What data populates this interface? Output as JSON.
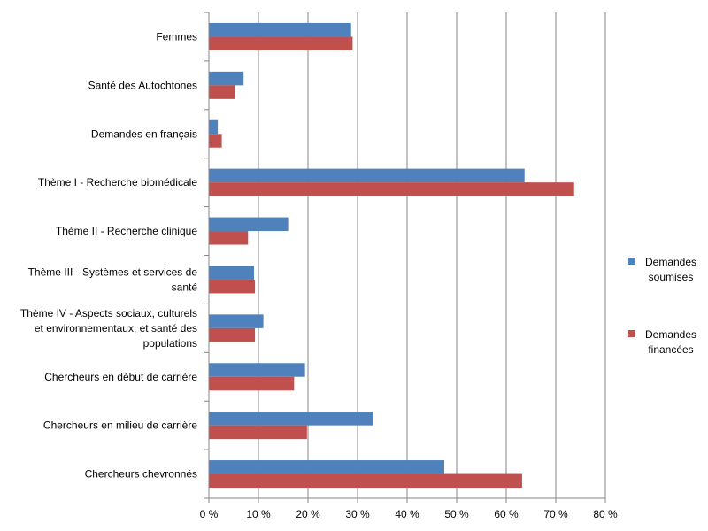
{
  "chart_data": {
    "type": "bar",
    "orientation": "horizontal",
    "title": "",
    "xlabel": "",
    "ylabel": "",
    "categories": [
      [
        "Femmes"
      ],
      [
        "Santé des Autochtones"
      ],
      [
        "Demandes en français"
      ],
      [
        "Thème I - Recherche biomédicale"
      ],
      [
        "Thème II - Recherche clinique"
      ],
      [
        "Thème III - Systèmes et services de",
        "santé"
      ],
      [
        "Thème IV - Aspects sociaux, culturels",
        "et environnementaux, et santé des",
        "populations"
      ],
      [
        "Chercheurs en début de carrière"
      ],
      [
        "Chercheurs en milieu de carrière"
      ],
      [
        "Chercheurs chevronnés"
      ]
    ],
    "series": [
      {
        "name": [
          "Demandes",
          "soumises"
        ],
        "color": "#4F81BD",
        "values": [
          28.7,
          7.0,
          1.8,
          63.7,
          16.0,
          9.1,
          11.0,
          19.4,
          33.1,
          47.5
        ]
      },
      {
        "name": [
          "Demandes",
          "financées"
        ],
        "color": "#C0504D",
        "values": [
          29.0,
          5.2,
          2.6,
          73.7,
          7.9,
          9.3,
          9.3,
          17.2,
          19.8,
          63.2
        ]
      }
    ],
    "xlim": [
      0,
      80
    ],
    "ticks": [
      0,
      10,
      20,
      30,
      40,
      50,
      60,
      70,
      80
    ],
    "tick_labels": [
      "0 %",
      "10 %",
      "20 %",
      "30 %",
      "40 %",
      "50 %",
      "60 %",
      "70 %",
      "80 %"
    ],
    "grid": true,
    "legend_position": "right"
  }
}
